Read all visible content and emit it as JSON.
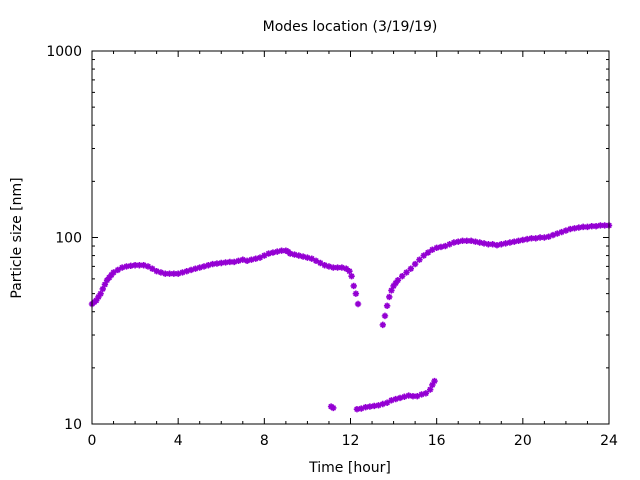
{
  "chart_data": {
    "type": "scatter",
    "title": "Modes location (3/19/19)",
    "xlabel": "Time [hour]",
    "ylabel": "Particle size [nm]",
    "xlim": [
      0,
      24
    ],
    "ylim": [
      10,
      1000
    ],
    "yscale": "log",
    "grid": false,
    "legend": "none",
    "xticks": [
      0,
      4,
      8,
      12,
      16,
      20,
      24
    ],
    "xtick_labels": [
      "0",
      "4",
      "8",
      "12",
      "16",
      "20",
      "24"
    ],
    "yticks": [
      10,
      100,
      1000
    ],
    "ytick_labels": [
      "10",
      "100",
      "1000"
    ],
    "marker": "star",
    "series": [
      {
        "color": "#9400D3",
        "points": [
          [
            0.0,
            44
          ],
          [
            0.1,
            45
          ],
          [
            0.2,
            46
          ],
          [
            0.3,
            48
          ],
          [
            0.4,
            50
          ],
          [
            0.5,
            53
          ],
          [
            0.6,
            56
          ],
          [
            0.7,
            59
          ],
          [
            0.8,
            61
          ],
          [
            0.9,
            63
          ],
          [
            1.0,
            65
          ],
          [
            1.2,
            67
          ],
          [
            1.4,
            69
          ],
          [
            1.6,
            70
          ],
          [
            1.8,
            70.5
          ],
          [
            2.0,
            71
          ],
          [
            2.2,
            71
          ],
          [
            2.4,
            71
          ],
          [
            2.6,
            70
          ],
          [
            2.8,
            68
          ],
          [
            3.0,
            66
          ],
          [
            3.2,
            65
          ],
          [
            3.4,
            64
          ],
          [
            3.6,
            64
          ],
          [
            3.8,
            64
          ],
          [
            4.0,
            64
          ],
          [
            4.2,
            65
          ],
          [
            4.4,
            66
          ],
          [
            4.6,
            67
          ],
          [
            4.8,
            68
          ],
          [
            5.0,
            69
          ],
          [
            5.2,
            70
          ],
          [
            5.4,
            71
          ],
          [
            5.6,
            72
          ],
          [
            5.8,
            72.5
          ],
          [
            6.0,
            73
          ],
          [
            6.2,
            73.5
          ],
          [
            6.4,
            74
          ],
          [
            6.6,
            74
          ],
          [
            6.8,
            75
          ],
          [
            7.0,
            76
          ],
          [
            7.2,
            75
          ],
          [
            7.4,
            76
          ],
          [
            7.6,
            77
          ],
          [
            7.8,
            78
          ],
          [
            8.0,
            80
          ],
          [
            8.2,
            82
          ],
          [
            8.4,
            83
          ],
          [
            8.6,
            84
          ],
          [
            8.8,
            85
          ],
          [
            9.0,
            85
          ],
          [
            9.1,
            84
          ],
          [
            9.2,
            82
          ],
          [
            9.4,
            81
          ],
          [
            9.6,
            80
          ],
          [
            9.8,
            79
          ],
          [
            10.0,
            78
          ],
          [
            10.2,
            77
          ],
          [
            10.4,
            75
          ],
          [
            10.6,
            73
          ],
          [
            10.8,
            71
          ],
          [
            11.0,
            70
          ],
          [
            11.2,
            69
          ],
          [
            11.4,
            69
          ],
          [
            11.6,
            69
          ],
          [
            11.8,
            68
          ],
          [
            11.95,
            66
          ],
          [
            12.05,
            62
          ],
          [
            12.15,
            55
          ],
          [
            12.25,
            50
          ],
          [
            12.35,
            44
          ],
          [
            13.5,
            34
          ],
          [
            13.6,
            38
          ],
          [
            13.7,
            43
          ],
          [
            13.8,
            48
          ],
          [
            13.9,
            52
          ],
          [
            14.0,
            55
          ],
          [
            14.1,
            57
          ],
          [
            14.2,
            59
          ],
          [
            14.4,
            62
          ],
          [
            14.6,
            65
          ],
          [
            14.8,
            68
          ],
          [
            15.0,
            72
          ],
          [
            15.2,
            76
          ],
          [
            15.4,
            80
          ],
          [
            15.6,
            83
          ],
          [
            15.8,
            86
          ],
          [
            16.0,
            88
          ],
          [
            16.2,
            89
          ],
          [
            16.4,
            90
          ],
          [
            16.6,
            92
          ],
          [
            16.8,
            94
          ],
          [
            17.0,
            95
          ],
          [
            17.2,
            96
          ],
          [
            17.4,
            96
          ],
          [
            17.6,
            96
          ],
          [
            17.8,
            95
          ],
          [
            18.0,
            94
          ],
          [
            18.2,
            93
          ],
          [
            18.4,
            92
          ],
          [
            18.6,
            92
          ],
          [
            18.8,
            91
          ],
          [
            19.0,
            92
          ],
          [
            19.2,
            93
          ],
          [
            19.4,
            94
          ],
          [
            19.6,
            95
          ],
          [
            19.8,
            96
          ],
          [
            20.0,
            97
          ],
          [
            20.2,
            98
          ],
          [
            20.4,
            99
          ],
          [
            20.6,
            99
          ],
          [
            20.8,
            100
          ],
          [
            21.0,
            100
          ],
          [
            21.2,
            101
          ],
          [
            21.4,
            103
          ],
          [
            21.6,
            105
          ],
          [
            21.8,
            107
          ],
          [
            22.0,
            109
          ],
          [
            22.2,
            111
          ],
          [
            22.4,
            112
          ],
          [
            22.6,
            113
          ],
          [
            22.8,
            114
          ],
          [
            23.0,
            114
          ],
          [
            23.2,
            115
          ],
          [
            23.4,
            115
          ],
          [
            23.6,
            116
          ],
          [
            23.8,
            116
          ],
          [
            24.0,
            116
          ],
          [
            11.1,
            12.4
          ],
          [
            11.2,
            12.2
          ],
          [
            12.3,
            12.0
          ],
          [
            12.5,
            12.1
          ],
          [
            12.7,
            12.3
          ],
          [
            12.9,
            12.4
          ],
          [
            13.1,
            12.5
          ],
          [
            13.3,
            12.6
          ],
          [
            13.5,
            12.8
          ],
          [
            13.7,
            13.0
          ],
          [
            13.9,
            13.4
          ],
          [
            14.1,
            13.6
          ],
          [
            14.3,
            13.8
          ],
          [
            14.5,
            14.0
          ],
          [
            14.7,
            14.2
          ],
          [
            14.9,
            14.1
          ],
          [
            15.1,
            14.1
          ],
          [
            15.3,
            14.4
          ],
          [
            15.5,
            14.6
          ],
          [
            15.7,
            15.3
          ],
          [
            15.8,
            16.2
          ],
          [
            15.9,
            17.0
          ]
        ]
      }
    ]
  }
}
